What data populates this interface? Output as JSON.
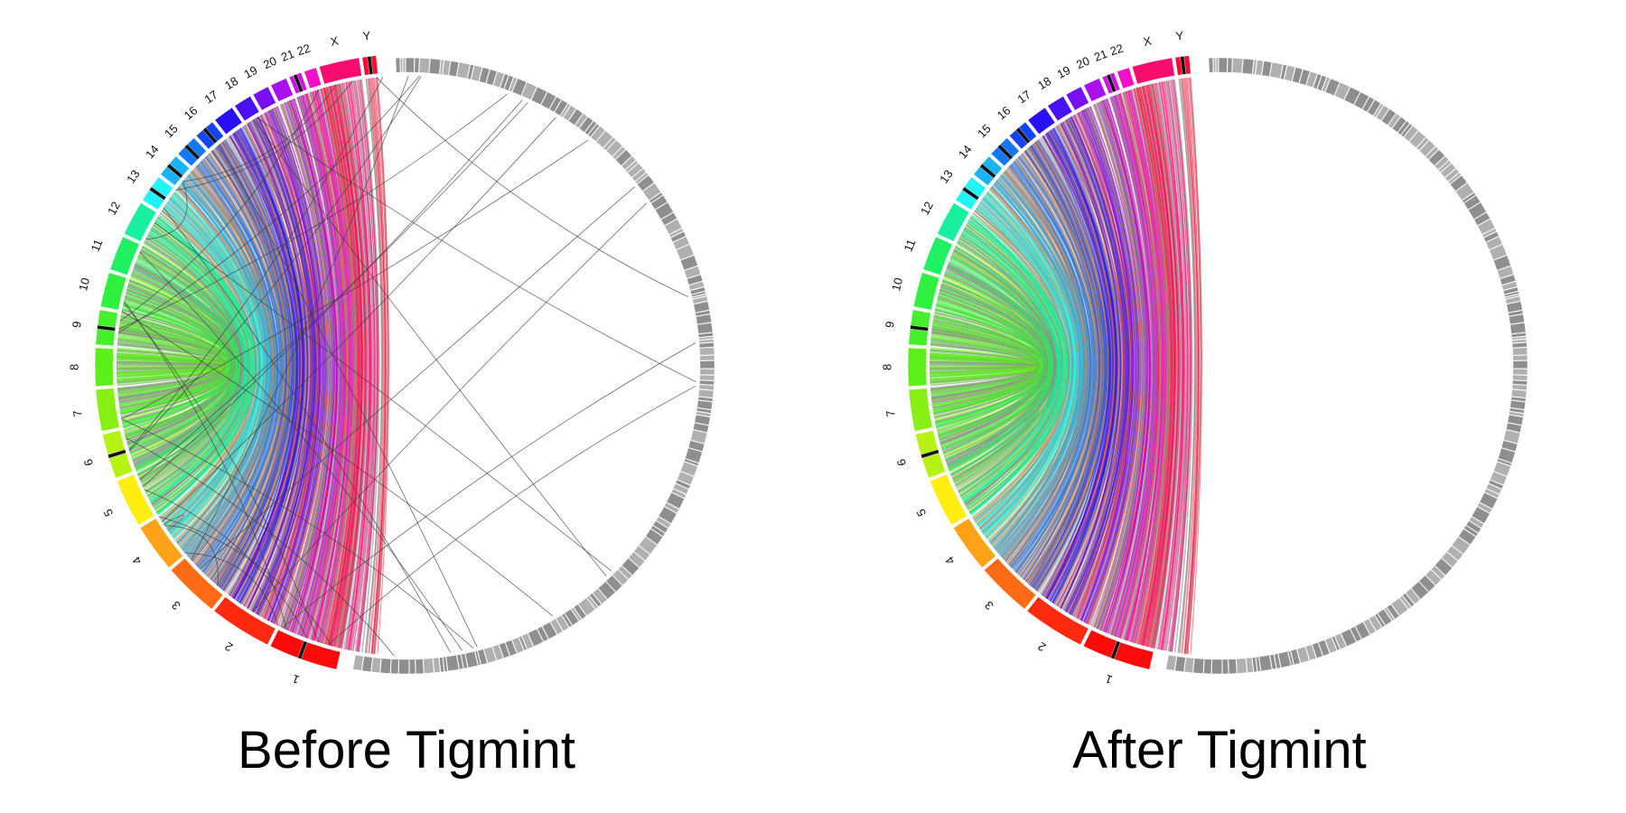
{
  "panels": [
    {
      "id": "before",
      "caption": "Before Tigmint",
      "misassembly_links": 34
    },
    {
      "id": "after",
      "caption": "After Tigmint",
      "misassembly_links": 0
    }
  ],
  "chromosomes": [
    {
      "name": "1",
      "color": "#ff0a0a"
    },
    {
      "name": "2",
      "color": "#ff2a10"
    },
    {
      "name": "3",
      "color": "#ff6a14"
    },
    {
      "name": "4",
      "color": "#ffa218"
    },
    {
      "name": "5",
      "color": "#ffee10"
    },
    {
      "name": "6",
      "color": "#b6f214"
    },
    {
      "name": "7",
      "color": "#88f014"
    },
    {
      "name": "8",
      "color": "#5cf018"
    },
    {
      "name": "9",
      "color": "#44f02a"
    },
    {
      "name": "10",
      "color": "#30f040"
    },
    {
      "name": "11",
      "color": "#20f064"
    },
    {
      "name": "12",
      "color": "#18f0a0"
    },
    {
      "name": "13",
      "color": "#20f4f4"
    },
    {
      "name": "14",
      "color": "#1ab4f4"
    },
    {
      "name": "15",
      "color": "#1478f4"
    },
    {
      "name": "16",
      "color": "#1444f4"
    },
    {
      "name": "17",
      "color": "#2a10f4"
    },
    {
      "name": "18",
      "color": "#4810f2"
    },
    {
      "name": "19",
      "color": "#7810f2"
    },
    {
      "name": "20",
      "color": "#a810f0"
    },
    {
      "name": "21",
      "color": "#d010e8"
    },
    {
      "name": "22",
      "color": "#f010c8"
    },
    {
      "name": "X",
      "color": "#f80c70"
    },
    {
      "name": "Y",
      "color": "#f80c30"
    }
  ],
  "colors": {
    "assembly_ring": "#9a9a9a",
    "misassembly_link": "#3a3a3a",
    "background": "#ffffff"
  }
}
